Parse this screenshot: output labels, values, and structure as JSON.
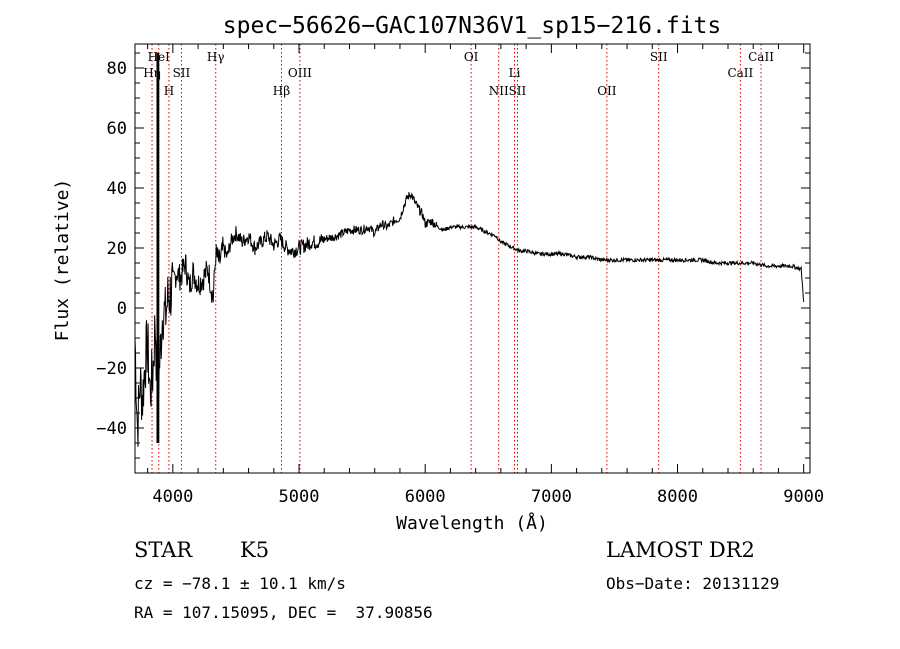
{
  "chart_data": {
    "type": "line",
    "title": "spec−56626−GAC107N36V1_sp15−216.fits",
    "xlabel": "Wavelength (Å)",
    "ylabel": "Flux (relative)",
    "xlim": [
      3700,
      9050
    ],
    "ylim": [
      -55,
      88
    ],
    "x_ticks": [
      4000,
      5000,
      6000,
      7000,
      8000,
      9000
    ],
    "x_tick_labels": [
      "4000",
      "5000",
      "6000",
      "7000",
      "8000",
      "9000"
    ],
    "y_ticks": [
      -40,
      -20,
      0,
      20,
      40,
      60,
      80
    ],
    "y_tick_labels": [
      "−40",
      "−20",
      "0",
      "20",
      "40",
      "60",
      "80"
    ],
    "grid": false,
    "legend": "none",
    "line_color": "#000000",
    "marker_line_color": "#cc0000",
    "series": [
      {
        "x": [
          3700,
          3720,
          3740,
          3760,
          3780,
          3800,
          3820,
          3840,
          3860,
          3880,
          3900,
          3920,
          3940,
          3960,
          3980,
          4000,
          4030,
          4060,
          4100,
          4130,
          4160,
          4200,
          4240,
          4280,
          4320,
          4340,
          4370,
          4400,
          4430,
          4460,
          4500,
          4550,
          4600,
          4650,
          4700,
          4750,
          4800,
          4850,
          4900,
          4950,
          5000,
          5050,
          5100,
          5150,
          5200,
          5300,
          5400,
          5500,
          5550,
          5600,
          5650,
          5700,
          5750,
          5800,
          5830,
          5860,
          5890,
          5920,
          5950,
          5980,
          6000,
          6050,
          6100,
          6150,
          6200,
          6300,
          6400,
          6500,
          6560,
          6600,
          6650,
          6700,
          6750,
          6800,
          6900,
          7000,
          7100,
          7200,
          7300,
          7400,
          7500,
          7600,
          7700,
          7800,
          7900,
          8000,
          8100,
          8200,
          8300,
          8400,
          8500,
          8600,
          8700,
          8800,
          8900,
          8980,
          9000
        ],
        "y": [
          -10,
          -40,
          -25,
          -30,
          -18,
          -12,
          -28,
          -22,
          -5,
          -30,
          -15,
          0,
          -3,
          3,
          5,
          8,
          12,
          10,
          15,
          7,
          12,
          8,
          10,
          13,
          3,
          18,
          15,
          20,
          17,
          22,
          25,
          22,
          24,
          20,
          22,
          24,
          21,
          23,
          20,
          19,
          20,
          21,
          22,
          22,
          23,
          24,
          26,
          26,
          27,
          25,
          28,
          27,
          29,
          30,
          34,
          37,
          38,
          35,
          33,
          31,
          28,
          29,
          27,
          26,
          27,
          27,
          27,
          25,
          24,
          22,
          21,
          20,
          19,
          19,
          18,
          18,
          18,
          17,
          17,
          16,
          16,
          16,
          16,
          16,
          16,
          16,
          16,
          16,
          15,
          15,
          15,
          15,
          14,
          14,
          14,
          13,
          2
        ]
      }
    ],
    "line_markers": [
      {
        "label": "Hη",
        "x": 3835,
        "row": 2
      },
      {
        "label": "HeI",
        "x": 3888,
        "row": 1
      },
      {
        "label": "H",
        "x": 3969,
        "row": 3
      },
      {
        "label": "SII",
        "x": 4068,
        "row": 2
      },
      {
        "label": "Hγ",
        "x": 4340,
        "row": 1
      },
      {
        "label": "Hβ",
        "x": 4861,
        "row": 3
      },
      {
        "label": "OIII",
        "x": 5007,
        "row": 2
      },
      {
        "label": "OI",
        "x": 6364,
        "row": 1
      },
      {
        "label": "NII",
        "x": 6583,
        "row": 3
      },
      {
        "label": "Li",
        "x": 6708,
        "row": 2
      },
      {
        "label": "SII",
        "x": 6731,
        "row": 3
      },
      {
        "label": "OII",
        "x": 7440,
        "row": 3
      },
      {
        "label": "SII",
        "x": 7851,
        "row": 1
      },
      {
        "label": "CaII",
        "x": 8498,
        "row": 2
      },
      {
        "label": "CaII",
        "x": 8662,
        "row": 1
      }
    ],
    "dense_x": [
      3800,
      3860,
      3880,
      3885,
      3890
    ],
    "dense_y": [
      -52,
      10,
      88,
      82,
      80
    ]
  },
  "info": {
    "object_type": "STAR",
    "subclass": "K5",
    "survey": "LAMOST DR2",
    "redshift": "cz = −78.1 ± 10.1 km/s",
    "obs_date": "Obs−Date: 20131129",
    "coords": "RA = 107.15095, DEC =  37.90856"
  }
}
